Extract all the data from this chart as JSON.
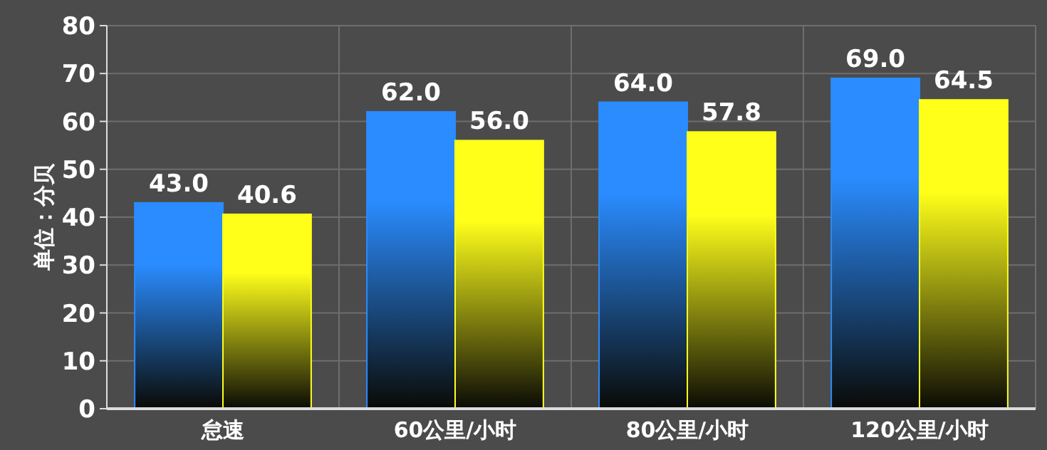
{
  "chart_data": {
    "type": "bar",
    "ylabel": "单位：分贝",
    "categories": [
      "怠速",
      "60公里/小时",
      "80公里/小时",
      "120公里/小时"
    ],
    "series": [
      {
        "color": "#2a8cff",
        "values": [
          43.0,
          62.0,
          64.0,
          69.0
        ],
        "value_labels": [
          "43.0",
          "62.0",
          "64.0",
          "69.0"
        ]
      },
      {
        "color": "#ffff1a",
        "values": [
          40.6,
          56.0,
          57.8,
          64.5
        ],
        "value_labels": [
          "40.6",
          "56.0",
          "57.8",
          "64.5"
        ]
      }
    ],
    "ylim": [
      0,
      80
    ],
    "yticks": [
      0,
      10,
      20,
      30,
      40,
      50,
      60,
      70,
      80
    ],
    "grid": true
  }
}
